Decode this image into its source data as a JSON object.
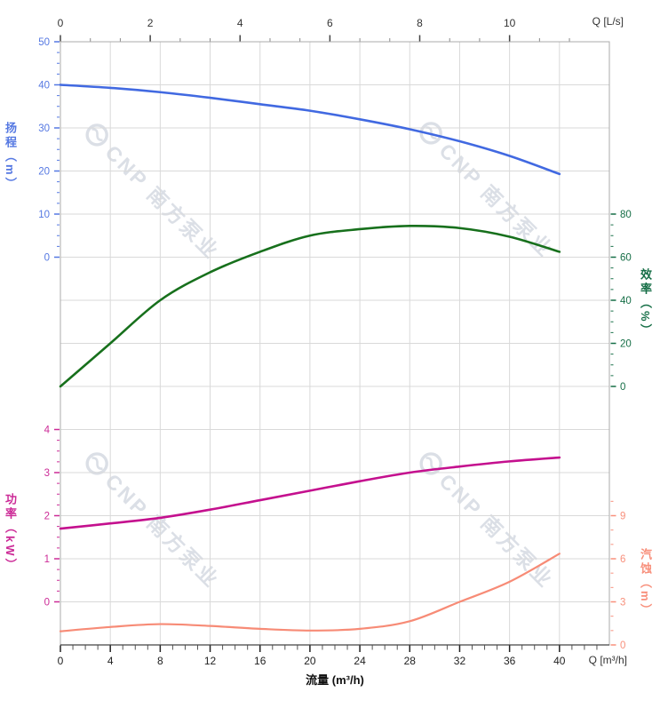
{
  "watermark": {
    "text": "CNP 南方泵业"
  },
  "colors": {
    "head": "#4169e1",
    "head_label": "#5578e2",
    "eff": "#17701c",
    "eff_label": "#156e46",
    "power": "#c4108e",
    "power_label": "#cc2b97",
    "npsh": "#f78b76",
    "npsh_label": "#f8907c",
    "grid": "#d9d9d9",
    "border": "#ababab",
    "axis_dark": "#444444",
    "axis_minor": "#888888",
    "text": "#222222"
  },
  "chart_data": {
    "type": "line",
    "xlabel": "流量 (m³/h)",
    "x_m3h": [
      0,
      4,
      8,
      12,
      16,
      20,
      24,
      28,
      32,
      36,
      40
    ],
    "series": [
      {
        "name": "扬程",
        "unit": "m",
        "axis_title": "扬程（m）",
        "values": [
          40.0,
          39.3,
          38.3,
          37.0,
          35.5,
          34.0,
          32.0,
          29.7,
          26.9,
          23.5,
          19.3
        ],
        "ylim": [
          0,
          50
        ]
      },
      {
        "name": "效率",
        "unit": "%",
        "axis_title": "效率（%）",
        "values": [
          0,
          20,
          40,
          53,
          62.5,
          70,
          73,
          74.5,
          73.5,
          69.5,
          62.5
        ],
        "ylim": [
          0,
          80
        ]
      },
      {
        "name": "功率",
        "unit": "kW",
        "axis_title": "功率（kW）",
        "values": [
          1.7,
          1.82,
          1.95,
          2.14,
          2.36,
          2.58,
          2.8,
          3.0,
          3.14,
          3.26,
          3.35
        ],
        "ylim": [
          0,
          4
        ]
      },
      {
        "name": "汽蚀",
        "unit": "m",
        "axis_title": "汽蚀（m）",
        "values": [
          0.95,
          1.25,
          1.45,
          1.32,
          1.12,
          1.0,
          1.12,
          1.65,
          3.0,
          4.4,
          6.35
        ],
        "ylim": [
          0,
          9
        ]
      }
    ],
    "axes": {
      "top": {
        "label": "Q [L/s]",
        "majors": [
          0,
          2,
          4,
          6,
          8,
          10
        ],
        "minors": [
          0.667,
          1.333,
          2.667,
          3.333,
          4.667,
          5.333,
          6.667,
          7.333,
          8.667,
          9.333,
          10.667,
          11.333
        ]
      },
      "bottom": {
        "label": "Q [m³/h]",
        "majors": [
          0,
          4,
          8,
          12,
          16,
          20,
          24,
          28,
          32,
          36,
          40
        ],
        "minors": [
          1,
          2,
          3,
          5,
          6,
          7,
          9,
          10,
          11,
          13,
          14,
          15,
          17,
          18,
          19,
          21,
          22,
          23,
          25,
          26,
          27,
          29,
          30,
          31,
          33,
          34,
          35,
          37,
          38,
          39,
          41,
          42,
          43
        ]
      },
      "head": {
        "title": "扬程（m）",
        "majors": [
          0,
          10,
          20,
          30,
          40,
          50
        ],
        "minors": [
          2.5,
          5,
          7.5,
          12.5,
          15,
          17.5,
          22.5,
          25,
          27.5,
          32.5,
          35,
          37.5,
          42.5,
          45,
          47.5
        ]
      },
      "eff": {
        "title": "效率（%）",
        "majors": [
          0,
          20,
          40,
          60,
          80
        ],
        "minors": [
          5,
          10,
          15,
          25,
          30,
          35,
          45,
          50,
          55,
          65,
          70,
          75
        ]
      },
      "power": {
        "title": "功率（kW）",
        "majors": [
          0,
          1,
          2,
          3,
          4
        ],
        "minors": [
          0.25,
          0.5,
          0.75,
          1.25,
          1.5,
          1.75,
          2.25,
          2.5,
          2.75,
          3.25,
          3.5,
          3.75
        ]
      },
      "npsh": {
        "title": "汽蚀（m）",
        "majors": [
          0,
          3,
          6,
          9
        ],
        "minors": [
          1,
          2,
          4,
          5,
          7,
          8,
          10
        ]
      }
    },
    "legend_position": "none",
    "grid": true
  }
}
